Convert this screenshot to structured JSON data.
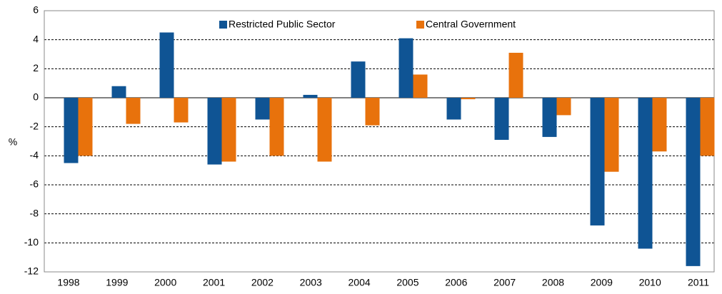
{
  "chart_data": {
    "type": "bar",
    "categories": [
      "1998",
      "1999",
      "2000",
      "2001",
      "2002",
      "2003",
      "2004",
      "2005",
      "2006",
      "2007",
      "2008",
      "2009",
      "2010",
      "2011"
    ],
    "series": [
      {
        "name": "Restricted Public Sector",
        "color": "#0f5494",
        "values": [
          -4.5,
          0.8,
          4.5,
          -4.6,
          -1.5,
          0.2,
          2.5,
          4.1,
          -1.5,
          -2.9,
          -2.7,
          -8.8,
          -10.4,
          -11.6
        ]
      },
      {
        "name": "Central Government",
        "color": "#e8720c",
        "values": [
          -4.0,
          -1.8,
          -1.7,
          -4.4,
          -4.0,
          -4.4,
          -1.9,
          1.6,
          -0.1,
          3.1,
          -1.2,
          -5.1,
          -3.7,
          -4.0
        ]
      }
    ],
    "y_label": "%",
    "ylim": [
      -12,
      6
    ],
    "yticks": [
      -12,
      -10,
      -8,
      -6,
      -4,
      -2,
      0,
      2,
      4,
      6
    ],
    "grid": true,
    "legend": "top"
  }
}
